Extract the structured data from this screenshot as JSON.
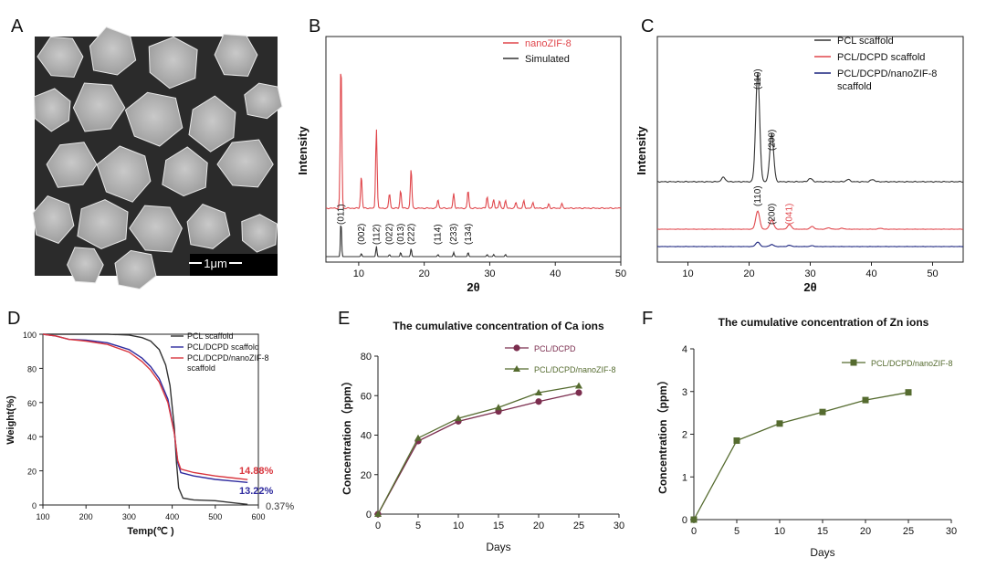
{
  "panel_labels": [
    "A",
    "B",
    "C",
    "D",
    "E",
    "F"
  ],
  "sem": {
    "scale_bar_label": "1μm"
  },
  "chart_data": [
    {
      "panel": "B",
      "type": "line",
      "xlabel": "2θ",
      "ylabel": "Intensity",
      "xlim": [
        5,
        50
      ],
      "xticks": [
        10,
        20,
        30,
        40,
        50
      ],
      "legend": "top-right",
      "series": [
        {
          "name": "nanoZIF-8",
          "color": "#e0474c",
          "peaks": [
            [
              7.3,
              1.0
            ],
            [
              10.4,
              0.22
            ],
            [
              12.7,
              0.54
            ],
            [
              14.7,
              0.1
            ],
            [
              16.4,
              0.12
            ],
            [
              18.0,
              0.27
            ],
            [
              22.1,
              0.06
            ],
            [
              24.5,
              0.1
            ],
            [
              26.7,
              0.12
            ],
            [
              29.6,
              0.08
            ],
            [
              30.6,
              0.06
            ],
            [
              31.5,
              0.05
            ],
            [
              32.4,
              0.05
            ],
            [
              34.0,
              0.04
            ],
            [
              35.2,
              0.05
            ],
            [
              36.6,
              0.04
            ],
            [
              39.0,
              0.03
            ],
            [
              41.0,
              0.03
            ]
          ]
        },
        {
          "name": "Simulated",
          "color": "#333333",
          "peaks": [
            [
              7.3,
              0.35
            ],
            [
              10.4,
              0.03
            ],
            [
              12.7,
              0.1
            ],
            [
              14.7,
              0.02
            ],
            [
              16.4,
              0.04
            ],
            [
              18.0,
              0.08
            ],
            [
              22.1,
              0.02
            ],
            [
              24.5,
              0.04
            ],
            [
              26.7,
              0.04
            ],
            [
              29.6,
              0.02
            ],
            [
              30.6,
              0.02
            ],
            [
              32.4,
              0.02
            ]
          ]
        }
      ],
      "annotations": [
        {
          "label": "(011)",
          "x": 7.3
        },
        {
          "label": "(002)",
          "x": 10.4
        },
        {
          "label": "(112)",
          "x": 12.7
        },
        {
          "label": "(022)",
          "x": 14.7
        },
        {
          "label": "(013)",
          "x": 16.4
        },
        {
          "label": "(222)",
          "x": 18.0
        },
        {
          "label": "(114)",
          "x": 22.1
        },
        {
          "label": "(233)",
          "x": 24.5
        },
        {
          "label": "(134)",
          "x": 26.7
        }
      ]
    },
    {
      "panel": "C",
      "type": "line",
      "xlabel": "2θ",
      "ylabel": "Intensity",
      "xlim": [
        5,
        55
      ],
      "xticks": [
        10,
        20,
        30,
        40,
        50
      ],
      "legend": "top-right",
      "series": [
        {
          "name": "PCL scaffold",
          "color": "#333333",
          "peaks": [
            [
              21.4,
              1.0
            ],
            [
              23.7,
              0.44
            ],
            [
              15.8,
              0.04
            ],
            [
              30.0,
              0.03
            ],
            [
              36.2,
              0.02
            ],
            [
              40.2,
              0.02
            ]
          ]
        },
        {
          "name": "PCL/DCPD scaffold",
          "color": "#e0474c",
          "peaks": [
            [
              21.4,
              0.4
            ],
            [
              23.7,
              0.2
            ],
            [
              26.6,
              0.1
            ],
            [
              30.3,
              0.06
            ],
            [
              33.0,
              0.03
            ],
            [
              35.2,
              0.02
            ],
            [
              41.5,
              0.02
            ]
          ]
        },
        {
          "name": "PCL/DCPD/nanoZIF-8 scaffold",
          "color": "#1a237e",
          "peaks": [
            [
              21.4,
              0.11
            ],
            [
              23.7,
              0.05
            ],
            [
              26.6,
              0.03
            ],
            [
              30.3,
              0.02
            ]
          ]
        }
      ],
      "annotations": [
        {
          "label": "(110)",
          "x": 21.4,
          "series": 0
        },
        {
          "label": "(200)",
          "x": 23.7,
          "series": 0
        },
        {
          "label": "(110)",
          "x": 21.4,
          "series": 1
        },
        {
          "label": "(200)",
          "x": 23.7,
          "series": 1
        },
        {
          "label": "(041)",
          "x": 26.6,
          "series": 1,
          "color": "#e0474c"
        }
      ]
    },
    {
      "panel": "D",
      "type": "line",
      "xlabel": "Temp(℃ )",
      "ylabel": "Weight(%)",
      "xlim": [
        100,
        600
      ],
      "ylim": [
        0,
        100
      ],
      "xticks": [
        100,
        200,
        300,
        400,
        500,
        600
      ],
      "yticks": [
        0,
        20,
        40,
        60,
        80,
        100
      ],
      "legend": "top-right",
      "series": [
        {
          "name": "PCL scaffold",
          "color": "#333333",
          "points": [
            [
              100,
              100
            ],
            [
              150,
              100
            ],
            [
              200,
              100
            ],
            [
              250,
              100
            ],
            [
              300,
              99.5
            ],
            [
              330,
              98
            ],
            [
              350,
              96
            ],
            [
              370,
              91
            ],
            [
              385,
              82
            ],
            [
              395,
              70
            ],
            [
              405,
              45
            ],
            [
              410,
              25
            ],
            [
              415,
              10
            ],
            [
              425,
              4
            ],
            [
              450,
              3
            ],
            [
              500,
              2.5
            ],
            [
              550,
              1
            ],
            [
              575,
              0.37
            ]
          ]
        },
        {
          "name": "PCL/DCPD scaffold",
          "color": "#2e2a9e",
          "points": [
            [
              100,
              100
            ],
            [
              130,
              99
            ],
            [
              160,
              97
            ],
            [
              200,
              96.5
            ],
            [
              250,
              95
            ],
            [
              300,
              91
            ],
            [
              330,
              86
            ],
            [
              350,
              81
            ],
            [
              370,
              74
            ],
            [
              390,
              62
            ],
            [
              405,
              42
            ],
            [
              413,
              25
            ],
            [
              420,
              19
            ],
            [
              450,
              17
            ],
            [
              500,
              15
            ],
            [
              575,
              13.22
            ]
          ]
        },
        {
          "name": "PCL/DCPD/nanoZIF-8 scaffold",
          "color": "#d9363e",
          "points": [
            [
              100,
              100
            ],
            [
              130,
              99
            ],
            [
              160,
              97
            ],
            [
              200,
              96
            ],
            [
              250,
              94
            ],
            [
              300,
              89.5
            ],
            [
              330,
              84
            ],
            [
              350,
              79
            ],
            [
              370,
              72
            ],
            [
              390,
              60
            ],
            [
              405,
              42
            ],
            [
              413,
              26
            ],
            [
              420,
              21
            ],
            [
              450,
              19
            ],
            [
              500,
              17
            ],
            [
              575,
              14.88
            ]
          ]
        }
      ],
      "annotations": [
        {
          "label": "14.88%",
          "color": "#d9363e"
        },
        {
          "label": "13.22%",
          "color": "#2e2a9e"
        },
        {
          "label": "0.37%",
          "color": "#333333"
        }
      ]
    },
    {
      "panel": "E",
      "type": "line",
      "title": "The cumulative concentration of Ca ions",
      "xlabel": "Days",
      "ylabel": "Concentration（ppm）",
      "xlim": [
        0,
        30
      ],
      "ylim": [
        0,
        80
      ],
      "xticks": [
        0,
        5,
        10,
        15,
        20,
        25,
        30
      ],
      "yticks": [
        0,
        20,
        40,
        60,
        80
      ],
      "legend": "top-right",
      "series": [
        {
          "name": "PCL/DCPD",
          "color": "#7b2d4e",
          "marker": "circle",
          "x": [
            0,
            5,
            10,
            15,
            20,
            25
          ],
          "y": [
            0,
            37,
            47,
            52,
            57,
            61.5
          ]
        },
        {
          "name": "PCL/DCPD/nanoZIF-8",
          "color": "#556b2f",
          "marker": "triangle",
          "x": [
            0,
            5,
            10,
            15,
            20,
            25
          ],
          "y": [
            0,
            38.5,
            48.5,
            54,
            61.5,
            65
          ]
        }
      ]
    },
    {
      "panel": "F",
      "type": "line",
      "title": "The cumulative concentration of Zn ions",
      "xlabel": "Days",
      "ylabel": "Concentration（ppm）",
      "xlim": [
        0,
        30
      ],
      "ylim": [
        0,
        4
      ],
      "xticks": [
        0,
        5,
        10,
        15,
        20,
        25,
        30
      ],
      "yticks": [
        0,
        1,
        2,
        3,
        4
      ],
      "legend": "top-right",
      "series": [
        {
          "name": "PCL/DCPD/nanoZIF-8",
          "color": "#556b2f",
          "marker": "square",
          "x": [
            0,
            5,
            10,
            15,
            20,
            25
          ],
          "y": [
            0,
            1.85,
            2.25,
            2.52,
            2.8,
            2.98
          ]
        }
      ]
    }
  ]
}
